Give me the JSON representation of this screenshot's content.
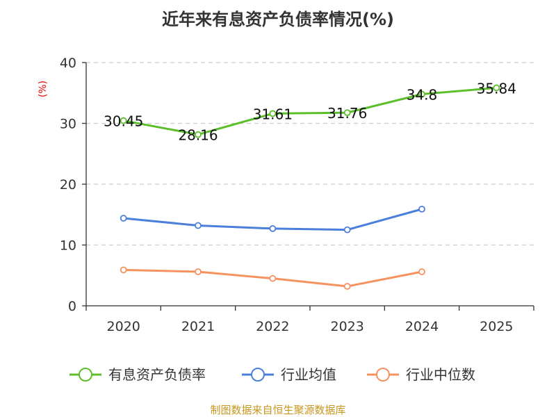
{
  "chart_data": {
    "type": "line",
    "title": "近年来有息资产负债率情况(%)",
    "ylabel": "(%)",
    "xlabel": "",
    "ylim": [
      0,
      40
    ],
    "yticks": [
      0,
      10,
      20,
      30,
      40
    ],
    "grid": true,
    "legend_position": "bottom",
    "categories": [
      "2020",
      "2021",
      "2022",
      "2023",
      "2024",
      "2025"
    ],
    "series": [
      {
        "name": "有息资产负债率",
        "color": "#5cbf2a",
        "values": [
          30.45,
          28.16,
          31.61,
          31.76,
          34.8,
          35.84
        ],
        "labels": [
          "30.45",
          "28.16",
          "31.61",
          "31.76",
          "34.8",
          "35.84"
        ]
      },
      {
        "name": "行业均值",
        "color": "#4a7fdb",
        "values": [
          14.4,
          13.2,
          12.7,
          12.5,
          15.9,
          null
        ]
      },
      {
        "name": "行业中位数",
        "color": "#f5925e",
        "values": [
          5.9,
          5.6,
          4.5,
          3.2,
          5.6,
          null
        ]
      }
    ]
  },
  "source": "制图数据来自恒生聚源数据库"
}
